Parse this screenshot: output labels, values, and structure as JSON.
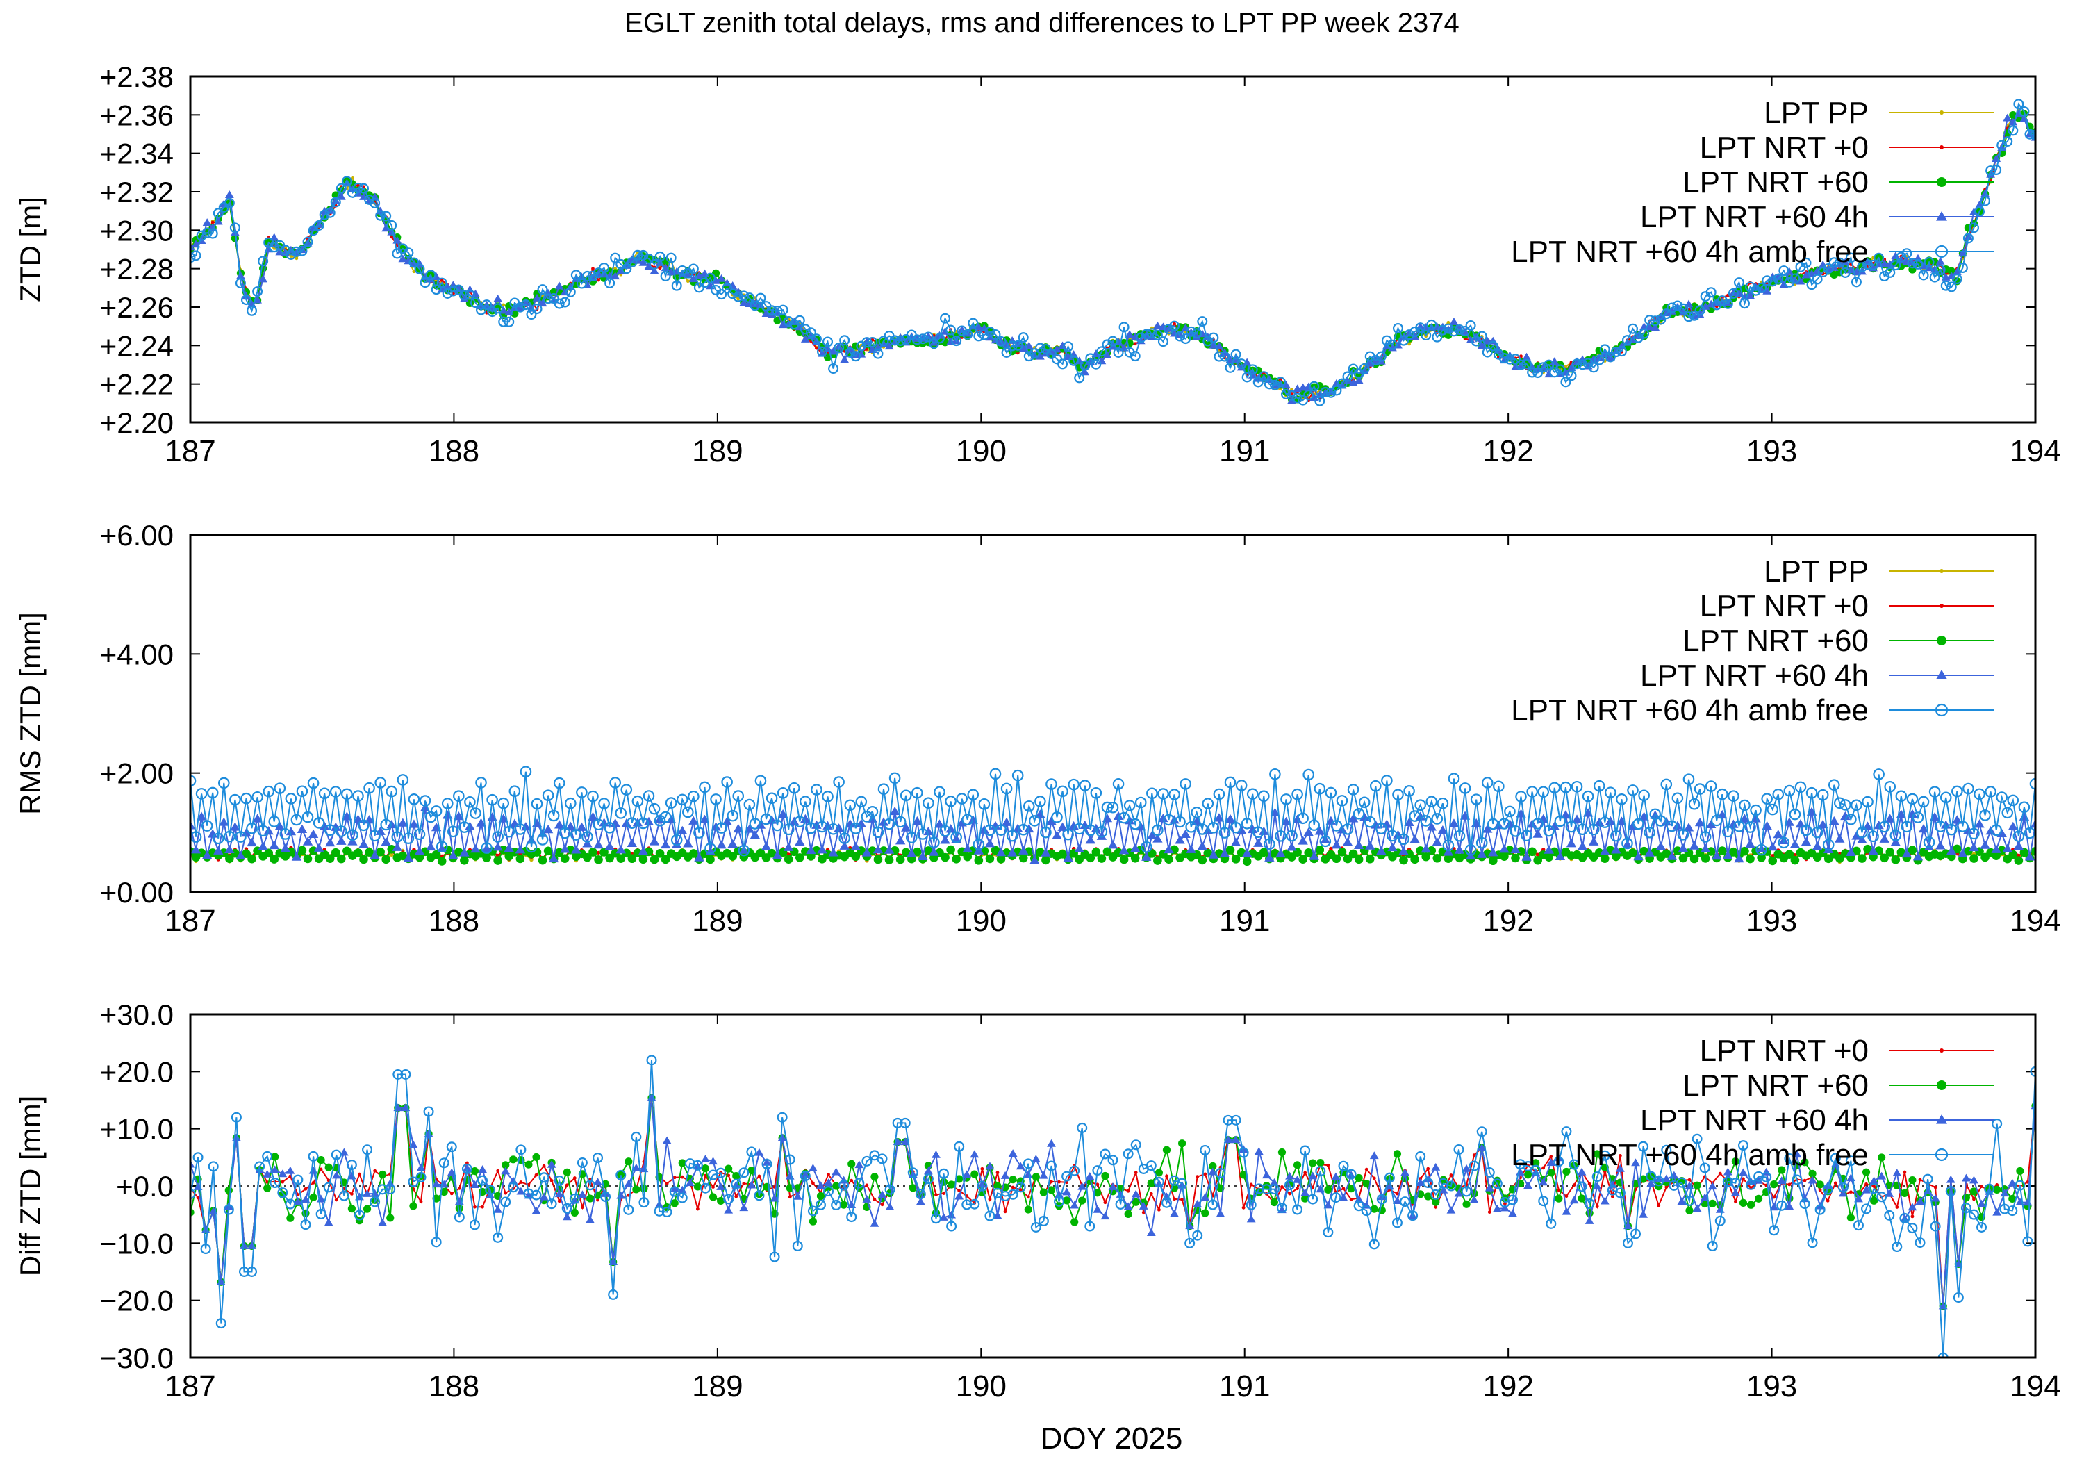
{
  "title": "EGLT zenith total delays, rms and differences to LPT PP week 2374",
  "x_label": "DOY 2025",
  "series_colors": {
    "LPT PP": "#c8b400",
    "LPT NRT +0": "#e60000",
    "LPT NRT +60": "#00b400",
    "LPT NRT +60 4h": "#3c64dc",
    "LPT NRT +60 4h amb free": "#1e8cdc"
  },
  "chart_data": [
    {
      "type": "line",
      "ylabel": "ZTD [m]",
      "xlim": [
        187,
        194
      ],
      "ylim": [
        2.2,
        2.38
      ],
      "x_ticks": [
        "187",
        "188",
        "189",
        "190",
        "191",
        "192",
        "193",
        "194"
      ],
      "y_ticks": [
        "+2.20",
        "+2.22",
        "+2.24",
        "+2.26",
        "+2.28",
        "+2.30",
        "+2.32",
        "+2.34",
        "+2.36",
        "+2.38"
      ],
      "legend_position": "top-right",
      "series": [
        {
          "name": "LPT PP",
          "marker": "dot"
        },
        {
          "name": "LPT NRT +0",
          "marker": "dot"
        },
        {
          "name": "LPT NRT +60",
          "marker": "circle-filled"
        },
        {
          "name": "LPT NRT +60 4h",
          "marker": "triangle"
        },
        {
          "name": "LPT NRT +60 4h amb free",
          "marker": "circle-open"
        }
      ],
      "profile": [
        [
          187.0,
          2.29
        ],
        [
          187.1,
          2.305
        ],
        [
          187.15,
          2.315
        ],
        [
          187.2,
          2.27
        ],
        [
          187.25,
          2.26
        ],
        [
          187.3,
          2.295
        ],
        [
          187.4,
          2.285
        ],
        [
          187.5,
          2.305
        ],
        [
          187.6,
          2.325
        ],
        [
          187.7,
          2.315
        ],
        [
          187.8,
          2.29
        ],
        [
          187.9,
          2.275
        ],
        [
          188.0,
          2.27
        ],
        [
          188.1,
          2.262
        ],
        [
          188.2,
          2.258
        ],
        [
          188.3,
          2.262
        ],
        [
          188.4,
          2.268
        ],
        [
          188.5,
          2.275
        ],
        [
          188.6,
          2.278
        ],
        [
          188.7,
          2.285
        ],
        [
          188.8,
          2.282
        ],
        [
          188.9,
          2.275
        ],
        [
          189.0,
          2.275
        ],
        [
          189.1,
          2.265
        ],
        [
          189.2,
          2.258
        ],
        [
          189.3,
          2.25
        ],
        [
          189.4,
          2.238
        ],
        [
          189.5,
          2.236
        ],
        [
          189.6,
          2.24
        ],
        [
          189.7,
          2.243
        ],
        [
          189.8,
          2.242
        ],
        [
          189.9,
          2.245
        ],
        [
          190.0,
          2.249
        ],
        [
          190.1,
          2.24
        ],
        [
          190.2,
          2.236
        ],
        [
          190.3,
          2.238
        ],
        [
          190.4,
          2.228
        ],
        [
          190.5,
          2.24
        ],
        [
          190.6,
          2.244
        ],
        [
          190.7,
          2.249
        ],
        [
          190.8,
          2.248
        ],
        [
          190.9,
          2.238
        ],
        [
          191.0,
          2.228
        ],
        [
          191.1,
          2.222
        ],
        [
          191.2,
          2.214
        ],
        [
          191.3,
          2.216
        ],
        [
          191.4,
          2.222
        ],
        [
          191.5,
          2.232
        ],
        [
          191.6,
          2.244
        ],
        [
          191.7,
          2.248
        ],
        [
          191.8,
          2.248
        ],
        [
          191.9,
          2.242
        ],
        [
          192.0,
          2.234
        ],
        [
          192.1,
          2.228
        ],
        [
          192.2,
          2.228
        ],
        [
          192.3,
          2.232
        ],
        [
          192.4,
          2.236
        ],
        [
          192.5,
          2.245
        ],
        [
          192.6,
          2.258
        ],
        [
          192.7,
          2.258
        ],
        [
          192.8,
          2.262
        ],
        [
          192.9,
          2.268
        ],
        [
          193.0,
          2.272
        ],
        [
          193.1,
          2.276
        ],
        [
          193.2,
          2.28
        ],
        [
          193.3,
          2.28
        ],
        [
          193.4,
          2.283
        ],
        [
          193.5,
          2.284
        ],
        [
          193.6,
          2.282
        ],
        [
          193.7,
          2.276
        ],
        [
          193.75,
          2.3
        ],
        [
          193.8,
          2.315
        ],
        [
          193.85,
          2.335
        ],
        [
          193.9,
          2.355
        ],
        [
          193.95,
          2.36
        ],
        [
          194.0,
          2.35
        ]
      ]
    },
    {
      "type": "line",
      "ylabel": "RMS ZTD [mm]",
      "xlim": [
        187,
        194
      ],
      "ylim": [
        0,
        6
      ],
      "x_ticks": [
        "187",
        "188",
        "189",
        "190",
        "191",
        "192",
        "193",
        "194"
      ],
      "y_ticks": [
        "+0.00",
        "+2.00",
        "+4.00",
        "+6.00"
      ],
      "legend_position": "top-right",
      "series": [
        {
          "name": "LPT PP",
          "marker": "dot"
        },
        {
          "name": "LPT NRT +0",
          "marker": "dot"
        },
        {
          "name": "LPT NRT +60",
          "marker": "circle-filled"
        },
        {
          "name": "LPT NRT +60 4h",
          "marker": "triangle"
        },
        {
          "name": "LPT NRT +60 4h amb free",
          "marker": "circle-open"
        }
      ],
      "levels": {
        "LPT PP": 0.62,
        "LPT NRT +0": 0.64,
        "LPT NRT +60": 0.62,
        "LPT NRT +60 4h": 0.95,
        "LPT NRT +60 4h amb free": 1.35
      }
    },
    {
      "type": "line",
      "ylabel": "Diff ZTD [mm]",
      "xlim": [
        187,
        194
      ],
      "ylim": [
        -30,
        30
      ],
      "x_ticks": [
        "187",
        "188",
        "189",
        "190",
        "191",
        "192",
        "193",
        "194"
      ],
      "y_ticks": [
        "−30.0",
        "−20.0",
        "−10.0",
        "+0.0",
        "+10.0",
        "+20.0",
        "+30.0"
      ],
      "zero_line": true,
      "legend_position": "top-right",
      "series": [
        {
          "name": "LPT NRT +0",
          "marker": "dot"
        },
        {
          "name": "LPT NRT +60",
          "marker": "circle-filled"
        },
        {
          "name": "LPT NRT +60 4h",
          "marker": "triangle"
        },
        {
          "name": "LPT NRT +60 4h amb free",
          "marker": "circle-open"
        }
      ],
      "spikes": [
        [
          187.05,
          -11
        ],
        [
          187.12,
          -24
        ],
        [
          187.18,
          12
        ],
        [
          187.22,
          -15
        ],
        [
          187.8,
          19.5
        ],
        [
          187.9,
          13
        ],
        [
          188.6,
          -19
        ],
        [
          188.74,
          22
        ],
        [
          189.25,
          12
        ],
        [
          189.7,
          11
        ],
        [
          190.8,
          -10
        ],
        [
          190.95,
          11.5
        ],
        [
          191.9,
          9.5
        ],
        [
          192.45,
          -10
        ],
        [
          193.65,
          -30
        ],
        [
          193.7,
          -19.5
        ],
        [
          194.0,
          20
        ]
      ]
    }
  ]
}
